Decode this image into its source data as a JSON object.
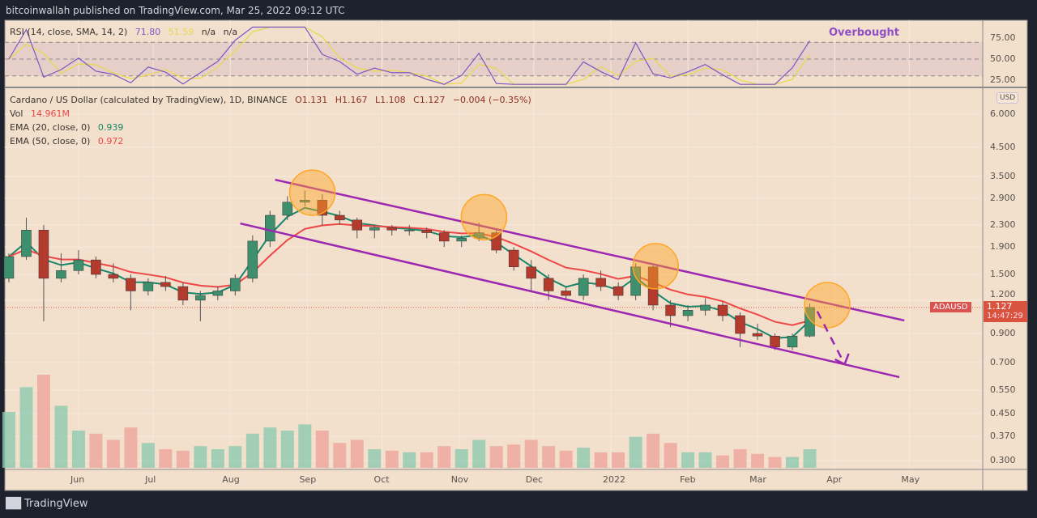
{
  "header": {
    "published": "bitcoinwallah published on TradingView.com, Mar 25, 2022 09:12 UTC"
  },
  "footer": {
    "brand": "TradingView",
    "logo_text": "TV"
  },
  "rsi_legend": {
    "label": "RSI (14, close, SMA, 14, 2)",
    "rsi": "71.80",
    "sma": "51.59",
    "na1": "n/a",
    "na2": "n/a"
  },
  "annotation": {
    "overbought": "Overbought"
  },
  "main_legend": {
    "symbol": "Cardano / US Dollar (calculated by TradingView), 1D, BINANCE",
    "open": "O1.131",
    "high": "H1.167",
    "low": "L1.108",
    "close": "C1.127",
    "change": "−0.004 (−0.35%)",
    "vol_label": "Vol",
    "vol_value": "14.961M",
    "ema20_label": "EMA (20, close, 0)",
    "ema20_value": "0.939",
    "ema50_label": "EMA (50, close, 0)",
    "ema50_value": "0.972"
  },
  "price_axis": {
    "currency": "USD",
    "ticks": [
      "6.000",
      "4.500",
      "3.500",
      "2.900",
      "2.300",
      "1.900",
      "1.500",
      "1.200",
      "0.900",
      "0.700",
      "0.550",
      "0.450",
      "0.370",
      "0.300"
    ]
  },
  "rsi_axis": {
    "ticks": [
      "75.00",
      "50.00",
      "25.00"
    ]
  },
  "price_tag": {
    "symbol": "ADAUSD",
    "price": "1.127",
    "countdown": "14:47:29"
  },
  "colors": {
    "background": "#f2dfcc",
    "up": "#3d8f6e",
    "down": "#b23b2e",
    "ema20": "#17866a",
    "ema50": "#ee4747",
    "rsi": "#7e57c2",
    "rsi_sma": "#e8d84a",
    "channel": "#9c27b0",
    "circle": "#ffa726"
  },
  "chart_data": {
    "type": "candlestick",
    "title": "Cardano / US Dollar (calculated by TradingView), 1D, BINANCE",
    "scale": "log",
    "ylim": [
      0.3,
      7.5
    ],
    "x_ticks": [
      {
        "label": "Jun",
        "date": "2021-06-01"
      },
      {
        "label": "Jul",
        "date": "2021-07-01"
      },
      {
        "label": "Aug",
        "date": "2021-08-01"
      },
      {
        "label": "Sep",
        "date": "2021-09-01"
      },
      {
        "label": "Oct",
        "date": "2021-10-01"
      },
      {
        "label": "Nov",
        "date": "2021-11-01"
      },
      {
        "label": "Dec",
        "date": "2021-12-01"
      },
      {
        "label": "2022",
        "date": "2022-01-01"
      },
      {
        "label": "Feb",
        "date": "2022-02-01"
      },
      {
        "label": "Mar",
        "date": "2022-03-01"
      },
      {
        "label": "Apr",
        "date": "2022-04-01"
      },
      {
        "label": "May",
        "date": "2022-05-01"
      }
    ],
    "candles": [
      [
        "2021-05-03",
        1.45,
        1.8,
        1.4,
        1.75,
        180
      ],
      [
        "2021-05-10",
        1.75,
        2.45,
        1.7,
        2.2,
        260
      ],
      [
        "2021-05-17",
        2.2,
        2.3,
        1.0,
        1.45,
        300
      ],
      [
        "2021-05-24",
        1.45,
        1.8,
        1.4,
        1.55,
        200
      ],
      [
        "2021-05-31",
        1.55,
        1.85,
        1.5,
        1.7,
        120
      ],
      [
        "2021-06-07",
        1.7,
        1.75,
        1.45,
        1.5,
        110
      ],
      [
        "2021-06-14",
        1.5,
        1.65,
        1.4,
        1.45,
        90
      ],
      [
        "2021-06-21",
        1.45,
        1.5,
        1.1,
        1.3,
        130
      ],
      [
        "2021-06-28",
        1.3,
        1.45,
        1.25,
        1.4,
        80
      ],
      [
        "2021-07-05",
        1.4,
        1.48,
        1.3,
        1.35,
        60
      ],
      [
        "2021-07-12",
        1.35,
        1.4,
        1.15,
        1.2,
        55
      ],
      [
        "2021-07-19",
        1.2,
        1.3,
        1.0,
        1.25,
        70
      ],
      [
        "2021-07-26",
        1.25,
        1.35,
        1.2,
        1.3,
        60
      ],
      [
        "2021-08-02",
        1.3,
        1.5,
        1.25,
        1.45,
        70
      ],
      [
        "2021-08-09",
        1.45,
        2.1,
        1.4,
        2.0,
        110
      ],
      [
        "2021-08-16",
        2.0,
        2.6,
        1.9,
        2.5,
        130
      ],
      [
        "2021-08-23",
        2.5,
        2.95,
        2.4,
        2.8,
        120
      ],
      [
        "2021-08-30",
        2.8,
        3.1,
        2.7,
        2.85,
        140
      ],
      [
        "2021-09-06",
        2.85,
        3.0,
        2.3,
        2.5,
        120
      ],
      [
        "2021-09-13",
        2.5,
        2.6,
        2.3,
        2.4,
        80
      ],
      [
        "2021-09-20",
        2.4,
        2.45,
        2.05,
        2.2,
        90
      ],
      [
        "2021-09-27",
        2.2,
        2.3,
        2.05,
        2.25,
        60
      ],
      [
        "2021-10-04",
        2.25,
        2.3,
        2.1,
        2.2,
        55
      ],
      [
        "2021-10-11",
        2.2,
        2.3,
        2.1,
        2.2,
        50
      ],
      [
        "2021-10-18",
        2.2,
        2.25,
        2.05,
        2.15,
        50
      ],
      [
        "2021-10-25",
        2.15,
        2.2,
        1.9,
        2.0,
        70
      ],
      [
        "2021-11-01",
        2.0,
        2.1,
        1.9,
        2.05,
        60
      ],
      [
        "2021-11-08",
        2.05,
        2.35,
        2.0,
        2.15,
        90
      ],
      [
        "2021-11-15",
        2.15,
        2.2,
        1.8,
        1.85,
        70
      ],
      [
        "2021-11-22",
        1.85,
        1.9,
        1.55,
        1.6,
        75
      ],
      [
        "2021-11-29",
        1.6,
        1.7,
        1.3,
        1.45,
        90
      ],
      [
        "2021-12-06",
        1.45,
        1.5,
        1.2,
        1.3,
        70
      ],
      [
        "2021-12-13",
        1.3,
        1.35,
        1.2,
        1.25,
        55
      ],
      [
        "2021-12-20",
        1.25,
        1.5,
        1.2,
        1.45,
        65
      ],
      [
        "2021-12-27",
        1.45,
        1.55,
        1.3,
        1.35,
        50
      ],
      [
        "2022-01-03",
        1.35,
        1.4,
        1.2,
        1.25,
        50
      ],
      [
        "2022-01-10",
        1.25,
        1.65,
        1.2,
        1.6,
        100
      ],
      [
        "2022-01-17",
        1.6,
        1.62,
        1.1,
        1.15,
        110
      ],
      [
        "2022-01-24",
        1.15,
        1.2,
        0.95,
        1.05,
        80
      ],
      [
        "2022-01-31",
        1.05,
        1.15,
        1.0,
        1.1,
        50
      ],
      [
        "2022-02-07",
        1.1,
        1.22,
        1.05,
        1.15,
        50
      ],
      [
        "2022-02-14",
        1.15,
        1.18,
        1.0,
        1.05,
        40
      ],
      [
        "2022-02-21",
        1.05,
        1.08,
        0.8,
        0.9,
        60
      ],
      [
        "2022-02-28",
        0.9,
        0.98,
        0.85,
        0.88,
        45
      ],
      [
        "2022-03-07",
        0.88,
        0.9,
        0.78,
        0.8,
        35
      ],
      [
        "2022-03-14",
        0.8,
        0.9,
        0.78,
        0.88,
        35
      ],
      [
        "2022-03-21",
        0.88,
        1.167,
        0.87,
        1.127,
        60
      ]
    ],
    "candle_fields": [
      "week_start",
      "open",
      "high",
      "low",
      "close",
      "volume"
    ],
    "last_price": 1.127,
    "ema_periods": [
      20,
      50
    ],
    "rsi": {
      "period": 14,
      "value": 71.8,
      "sma": 51.59,
      "levels": [
        70,
        50,
        30
      ],
      "ylim": [
        20,
        85
      ]
    },
    "drawings": {
      "channel_upper": [
        [
          "2021-08-19",
          3.4
        ],
        [
          "2022-04-29",
          1.007
        ]
      ],
      "channel_lower": [
        [
          "2021-08-05",
          2.33
        ],
        [
          "2022-04-27",
          0.617
        ]
      ],
      "circles": [
        [
          "2021-09-03",
          3.04
        ],
        [
          "2021-11-11",
          2.46
        ],
        [
          "2022-01-19",
          1.61
        ],
        [
          "2022-03-29",
          1.15
        ]
      ],
      "dashed_arrow": [
        [
          "2022-03-25",
          1.09
        ],
        [
          "2022-04-05",
          0.69
        ]
      ]
    }
  }
}
